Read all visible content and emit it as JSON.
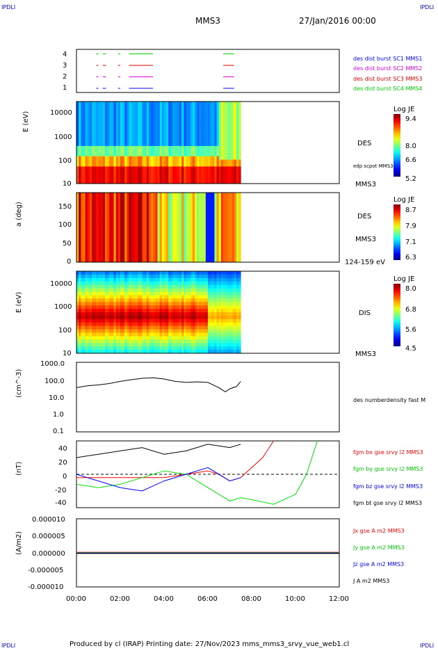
{
  "header": {
    "corner_label": "IPDLI",
    "title": "MMS3",
    "date": "27/Jan/2016 00:00"
  },
  "footer": {
    "text": "Produced by cl (IRAP)   Printing date: 27/Nov/2023   mms_mms3_srvy_vue_web1.cl"
  },
  "colors": {
    "mms1": "#0000ff",
    "mms2": "#dd00dd",
    "mms3": "#dd0000",
    "mms4": "#00cc00",
    "bx": "#ff0000",
    "by": "#00e000",
    "bz": "#0000ff",
    "bt": "#000000"
  },
  "chart_data": [
    {
      "type": "timeline",
      "name": "burst-availability",
      "x": [
        "00:00",
        "02:00",
        "04:00",
        "06:00",
        "08:00",
        "10:00",
        "12:00"
      ],
      "yticks": [
        "1",
        "2",
        "3",
        "4"
      ],
      "series": [
        {
          "name": "des dist burst SC1 MMS1",
          "level": 1,
          "segments": [
            [
              0.9,
              1.0
            ],
            [
              1.2,
              1.35
            ],
            [
              1.9,
              2.0
            ],
            [
              2.4,
              3.5
            ],
            [
              6.7,
              7.2
            ]
          ]
        },
        {
          "name": "des dist burst SC2 MMS2",
          "level": 2,
          "segments": [
            [
              0.9,
              1.0
            ],
            [
              1.2,
              1.35
            ],
            [
              1.9,
              2.0
            ],
            [
              2.4,
              3.5
            ],
            [
              6.7,
              7.2
            ]
          ]
        },
        {
          "name": "des dist burst SC3 MMS3",
          "level": 3,
          "segments": [
            [
              0.9,
              1.0
            ],
            [
              1.2,
              1.35
            ],
            [
              1.9,
              2.0
            ],
            [
              2.4,
              3.5
            ],
            [
              6.7,
              7.2
            ]
          ]
        },
        {
          "name": "des dist burst SC4 MMS4",
          "level": 4,
          "segments": [
            [
              0.9,
              1.0
            ],
            [
              1.2,
              1.35
            ],
            [
              1.9,
              2.0
            ],
            [
              2.4,
              3.5
            ],
            [
              6.7,
              7.2
            ]
          ]
        }
      ]
    },
    {
      "type": "heatmap",
      "name": "des-energy-spectrogram",
      "ylabel": "E (eV)",
      "yscale": "log",
      "yticks": [
        "10",
        "100",
        "1000",
        "10000"
      ],
      "instrument": "DES",
      "spacecraft": "MMS3",
      "overlay_label": "edp scpot MMS3",
      "colorbar": {
        "label": "Log JE",
        "ticks": [
          "9.4",
          "8.0",
          "6.6",
          "5.2"
        ],
        "range": [
          5.2,
          9.4
        ]
      },
      "data_end_hour": 7.5
    },
    {
      "type": "heatmap",
      "name": "des-pitch-angle",
      "ylabel": "a (deg)",
      "yticks": [
        "0",
        "50",
        "100",
        "150"
      ],
      "instrument": "DES",
      "spacecraft": "MMS3",
      "energy_range": "124-159 eV",
      "colorbar": {
        "label": "Log JE",
        "ticks": [
          "8.7",
          "7.9",
          "7.1",
          "6.3"
        ],
        "range": [
          6.3,
          8.7
        ]
      },
      "data_end_hour": 7.5
    },
    {
      "type": "heatmap",
      "name": "dis-energy-spectrogram",
      "ylabel": "E (eV)",
      "yscale": "log",
      "yticks": [
        "10",
        "100",
        "1000",
        "10000"
      ],
      "instrument": "DIS",
      "spacecraft": "MMS3",
      "colorbar": {
        "label": "Log JE",
        "ticks": [
          "8.0",
          "6.8",
          "5.6",
          "4.5"
        ],
        "range": [
          4.5,
          8.0
        ]
      },
      "data_end_hour": 7.5
    },
    {
      "type": "line",
      "name": "density",
      "ylabel": "(cm^-3)",
      "yscale": "log",
      "yticks": [
        "1000.0",
        "100.0",
        "10.0",
        "1.0",
        "0.1"
      ],
      "series": [
        {
          "name": "des numberdensity fast M",
          "color": "#000000",
          "x": [
            0.0,
            0.5,
            1.0,
            1.5,
            2.0,
            2.5,
            3.0,
            3.5,
            4.0,
            4.5,
            5.0,
            5.5,
            6.0,
            6.5,
            6.8,
            7.0,
            7.3,
            7.5
          ],
          "values": [
            35,
            45,
            50,
            60,
            80,
            100,
            120,
            130,
            110,
            80,
            70,
            75,
            70,
            35,
            20,
            30,
            40,
            80
          ]
        }
      ]
    },
    {
      "type": "line",
      "name": "magnetic-field",
      "ylabel": "(nT)",
      "yticks": [
        "40",
        "20",
        "0",
        "-20",
        "-40"
      ],
      "ylim": [
        -50,
        50
      ],
      "series": [
        {
          "name": "fgm bx gse srvy l2 MMS3",
          "color": "#ff0000",
          "x": [
            0,
            2,
            4,
            5,
            6,
            6.5,
            7,
            7.5,
            8,
            8.5,
            9.0
          ],
          "values": [
            -5,
            -5,
            -5,
            0,
            5,
            0,
            -10,
            -5,
            10,
            25,
            50
          ]
        },
        {
          "name": "fgm by gse srvy l2 MMS3",
          "color": "#00e000",
          "x": [
            0,
            1,
            2,
            3,
            4,
            5,
            6,
            7,
            7.5,
            8,
            9,
            10,
            10.5,
            11
          ],
          "values": [
            -15,
            -20,
            -15,
            -5,
            5,
            0,
            -20,
            -40,
            -35,
            -38,
            -45,
            -30,
            0,
            50
          ]
        },
        {
          "name": "fgm bz gse srvy l2 MMS3",
          "color": "#0000ff",
          "x": [
            0,
            1,
            2,
            3,
            4,
            5,
            6,
            7,
            7.5
          ],
          "values": [
            0,
            -10,
            -20,
            -25,
            -10,
            0,
            10,
            -10,
            -5
          ]
        },
        {
          "name": "fgm bt gse srvy l2 MMS3",
          "color": "#000000",
          "x": [
            0,
            1,
            2,
            3,
            4,
            5,
            6,
            7,
            7.5
          ],
          "values": [
            25,
            30,
            35,
            40,
            30,
            35,
            45,
            40,
            45
          ]
        }
      ]
    },
    {
      "type": "line",
      "name": "current-density",
      "ylabel": "(A/m2)",
      "yticks": [
        "0.000010",
        "0.000005",
        "0.000000",
        "-0.000005",
        "-0.000010"
      ],
      "ylim": [
        -1e-05,
        1e-05
      ],
      "series": [
        {
          "name": "Jx gse A m2 MMS3",
          "color": "#ff0000"
        },
        {
          "name": "Jy gse A m2 MMS3",
          "color": "#00e000"
        },
        {
          "name": "Jz gse A m2 MMS3",
          "color": "#0000ff"
        },
        {
          "name": "J A m2 MMS3",
          "color": "#000000"
        }
      ]
    }
  ]
}
